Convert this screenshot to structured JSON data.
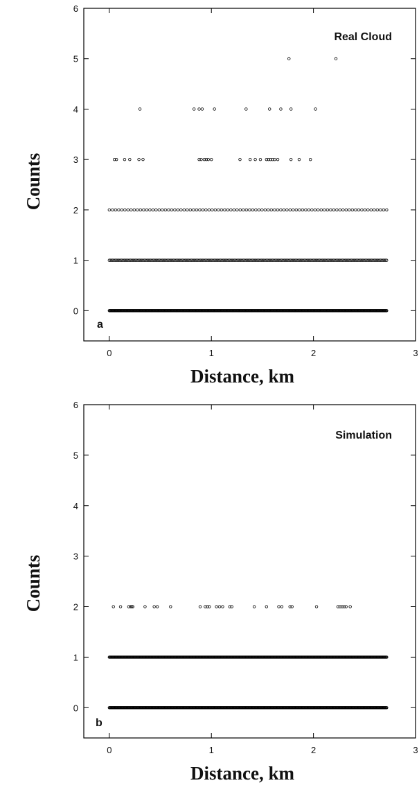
{
  "chart_data": [
    {
      "type": "scatter",
      "panel_label": "a",
      "title": "Real Cloud",
      "xlabel": "Distance, km",
      "ylabel": "Counts",
      "xlim": [
        -0.25,
        3.0
      ],
      "ylim": [
        -0.6,
        6.0
      ],
      "x_ticks": [
        0,
        1,
        2,
        3
      ],
      "y_ticks": [
        0,
        1,
        2,
        3,
        4,
        5,
        6
      ],
      "grid": false,
      "legend": false,
      "series": [
        {
          "y": 0,
          "x_range": [
            0.0,
            2.72
          ],
          "density": "continuous"
        },
        {
          "y": 1,
          "x_range": [
            0.0,
            2.72
          ],
          "density": "dense"
        },
        {
          "y": 2,
          "x_range": [
            0.0,
            2.72
          ],
          "density": "medium"
        },
        {
          "y": 3,
          "x": [
            0.05,
            0.07,
            0.15,
            0.2,
            0.29,
            0.33,
            0.88,
            0.9,
            0.93,
            0.95,
            0.97,
            1.0,
            1.28,
            1.38,
            1.43,
            1.48,
            1.54,
            1.56,
            1.58,
            1.6,
            1.62,
            1.65,
            1.78,
            1.86,
            1.97
          ]
        },
        {
          "y": 4,
          "x": [
            0.3,
            0.83,
            0.88,
            0.91,
            1.03,
            1.34,
            1.57,
            1.68,
            1.78,
            2.02
          ]
        },
        {
          "y": 5,
          "x": [
            1.76,
            2.22
          ]
        }
      ]
    },
    {
      "type": "scatter",
      "panel_label": "b",
      "title": "Simulation",
      "xlabel": "Distance, km",
      "ylabel": "Counts",
      "xlim": [
        -0.25,
        3.0
      ],
      "ylim": [
        -0.6,
        6.0
      ],
      "x_ticks": [
        0,
        1,
        2,
        3
      ],
      "y_ticks": [
        0,
        1,
        2,
        3,
        4,
        5,
        6
      ],
      "grid": false,
      "legend": false,
      "series": [
        {
          "y": 0,
          "x_range": [
            0.0,
            2.72
          ],
          "density": "continuous"
        },
        {
          "y": 1,
          "x_range": [
            0.0,
            2.72
          ],
          "density": "continuous"
        },
        {
          "y": 2,
          "x": [
            0.04,
            0.11,
            0.19,
            0.21,
            0.22,
            0.23,
            0.35,
            0.44,
            0.47,
            0.6,
            0.89,
            0.94,
            0.96,
            0.98,
            1.05,
            1.08,
            1.11,
            1.18,
            1.2,
            1.42,
            1.54,
            1.66,
            1.69,
            1.77,
            1.79,
            2.03,
            2.24,
            2.26,
            2.28,
            2.3,
            2.32,
            2.36
          ]
        }
      ]
    }
  ]
}
